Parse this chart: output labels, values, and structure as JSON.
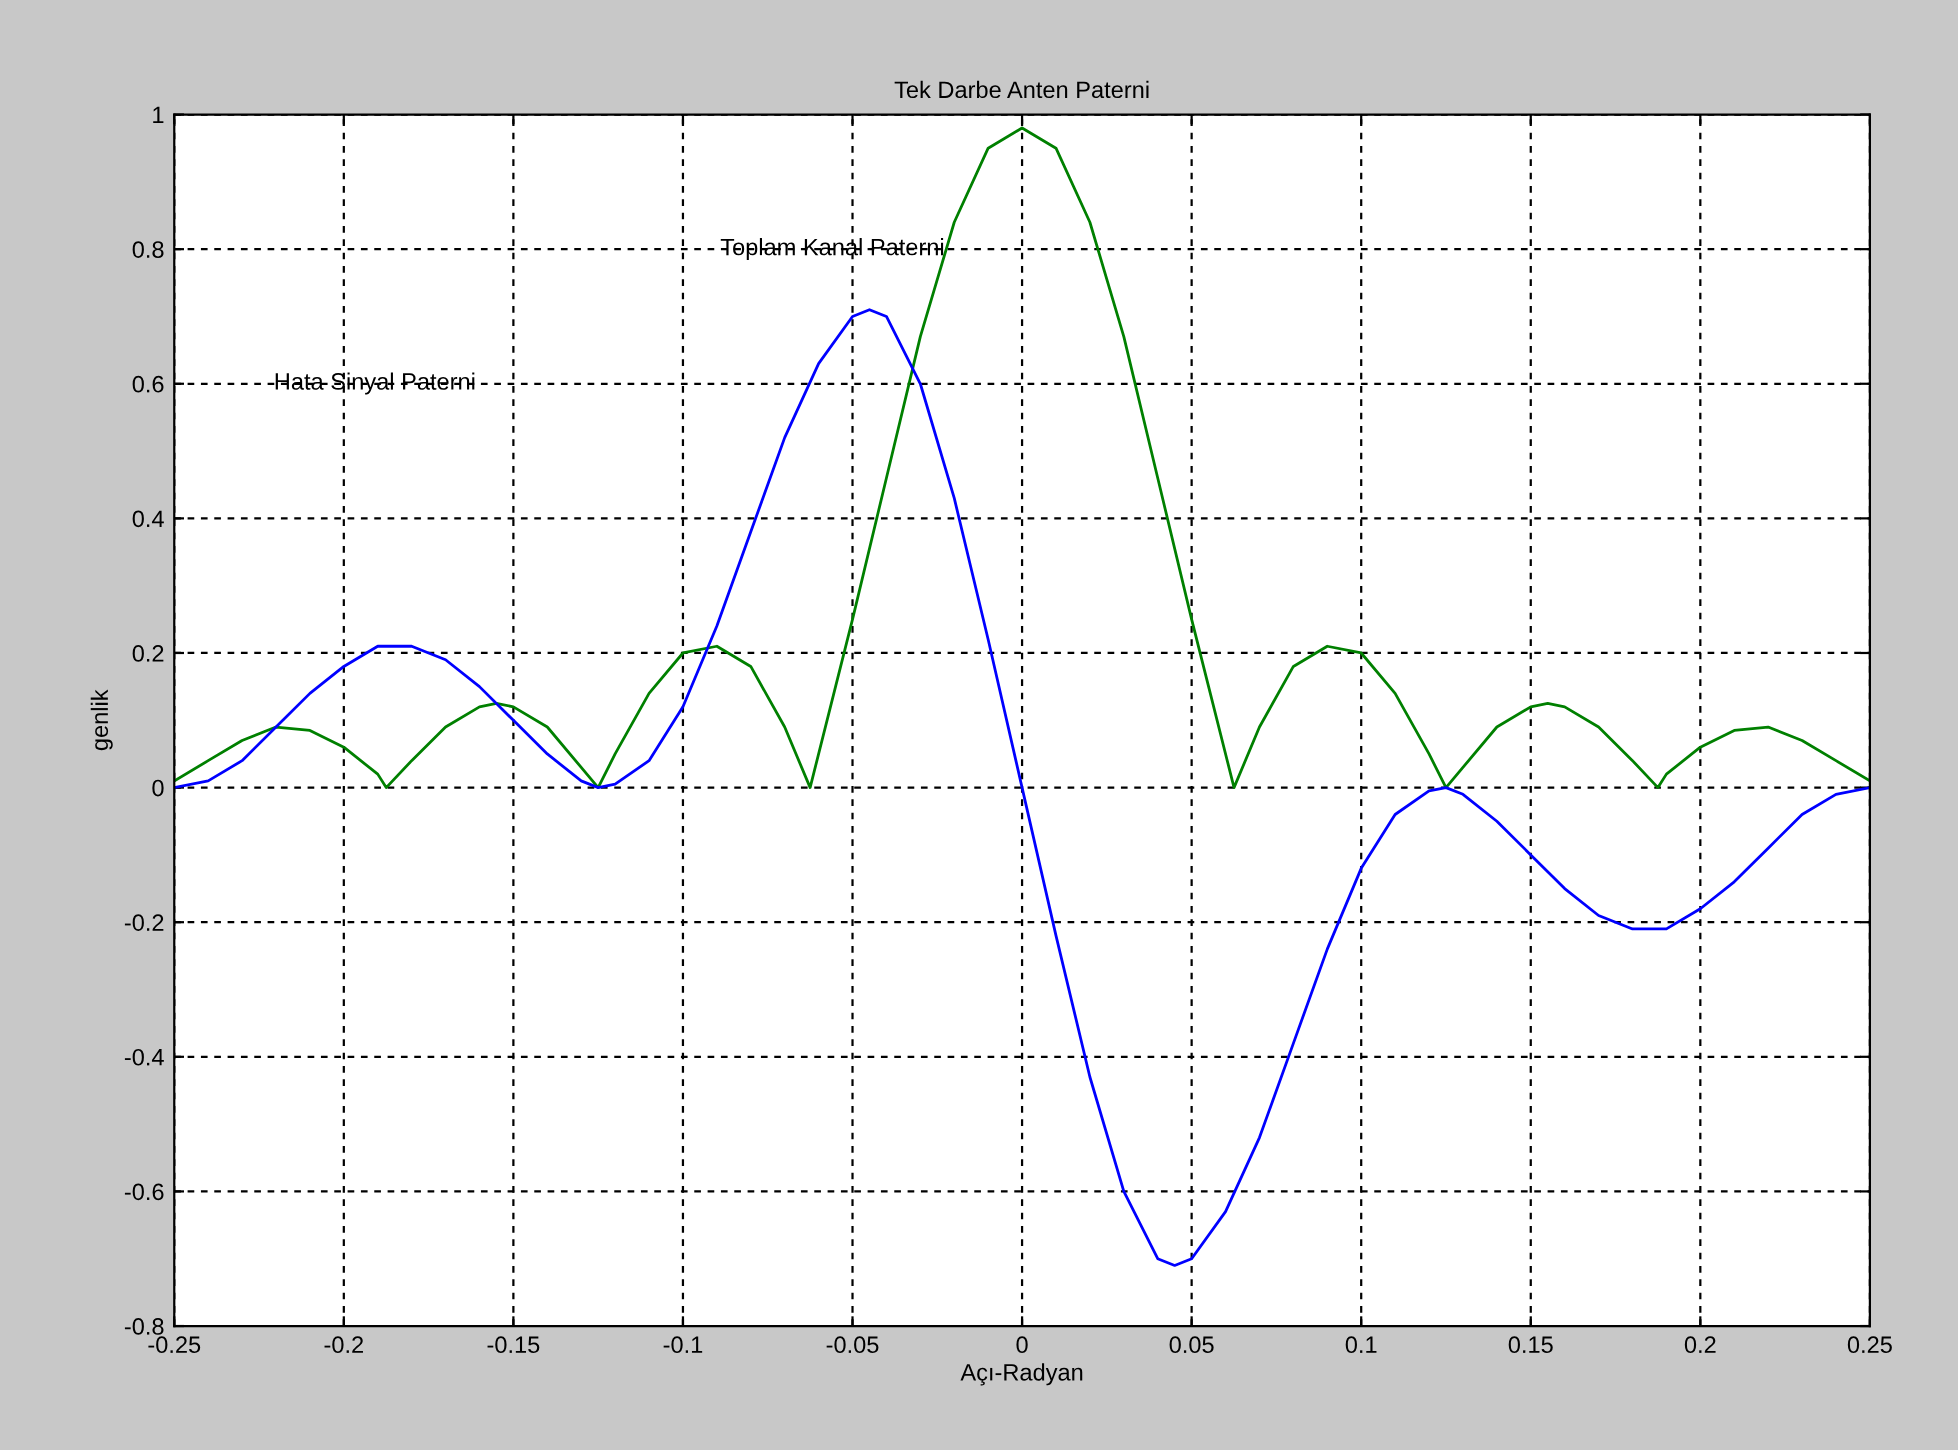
{
  "chart_data": {
    "type": "line",
    "title": "Tek Darbe Anten Paterni",
    "xlabel": "Açı-Radyan",
    "ylabel": "genlik",
    "xlim": [
      -0.25,
      0.25
    ],
    "ylim": [
      -0.8,
      1
    ],
    "xticks": [
      -0.25,
      -0.2,
      -0.15,
      -0.1,
      -0.05,
      0,
      0.05,
      0.1,
      0.15,
      0.2,
      0.25
    ],
    "yticks": [
      -0.8,
      -0.6,
      -0.4,
      -0.2,
      0,
      0.2,
      0.4,
      0.6,
      0.8,
      1
    ],
    "grid": true,
    "legend": false,
    "marker": "none",
    "line_style": "solid",
    "annotations": [
      "Toplam Kanal Paterni",
      "Hata Sinyal Paterni"
    ],
    "series": [
      {
        "color": "#008000",
        "x": [
          -0.25,
          -0.24,
          -0.23,
          -0.22,
          -0.21,
          -0.2,
          -0.19,
          -0.1875,
          -0.18,
          -0.17,
          -0.16,
          -0.155,
          -0.15,
          -0.14,
          -0.13,
          -0.125,
          -0.12,
          -0.11,
          -0.1,
          -0.09,
          -0.08,
          -0.07,
          -0.0625,
          -0.055,
          -0.05,
          -0.04,
          -0.03,
          -0.02,
          -0.01,
          0,
          0.01,
          0.02,
          0.03,
          0.04,
          0.05,
          0.055,
          0.0625,
          0.07,
          0.08,
          0.09,
          0.1,
          0.11,
          0.12,
          0.125,
          0.13,
          0.14,
          0.15,
          0.155,
          0.16,
          0.17,
          0.18,
          0.1875,
          0.19,
          0.2,
          0.21,
          0.22,
          0.23,
          0.24,
          0.25
        ],
        "values": [
          0.01,
          0.04,
          0.07,
          0.09,
          0.085,
          0.06,
          0.02,
          0,
          0.04,
          0.09,
          0.12,
          0.125,
          0.12,
          0.09,
          0.03,
          0,
          0.05,
          0.14,
          0.2,
          0.21,
          0.18,
          0.09,
          0,
          0.15,
          0.25,
          0.46,
          0.67,
          0.84,
          0.95,
          0.98,
          0.95,
          0.84,
          0.67,
          0.46,
          0.25,
          0.15,
          0,
          0.09,
          0.18,
          0.21,
          0.2,
          0.14,
          0.05,
          0,
          0.03,
          0.09,
          0.12,
          0.125,
          0.12,
          0.09,
          0.04,
          0,
          0.02,
          0.06,
          0.085,
          0.09,
          0.07,
          0.04,
          0.01
        ]
      },
      {
        "color": "#0000ff",
        "x": [
          -0.25,
          -0.24,
          -0.23,
          -0.22,
          -0.21,
          -0.2,
          -0.19,
          -0.18,
          -0.17,
          -0.16,
          -0.15,
          -0.14,
          -0.13,
          -0.125,
          -0.12,
          -0.11,
          -0.1,
          -0.09,
          -0.08,
          -0.07,
          -0.06,
          -0.05,
          -0.045,
          -0.04,
          -0.03,
          -0.02,
          -0.01,
          0,
          0.01,
          0.02,
          0.03,
          0.04,
          0.045,
          0.05,
          0.06,
          0.07,
          0.08,
          0.09,
          0.1,
          0.11,
          0.12,
          0.125,
          0.13,
          0.14,
          0.15,
          0.16,
          0.17,
          0.18,
          0.19,
          0.2,
          0.21,
          0.22,
          0.23,
          0.24,
          0.25
        ],
        "values": [
          0,
          0.01,
          0.04,
          0.09,
          0.14,
          0.18,
          0.21,
          0.21,
          0.19,
          0.15,
          0.1,
          0.05,
          0.01,
          0,
          0.005,
          0.04,
          0.12,
          0.24,
          0.38,
          0.52,
          0.63,
          0.7,
          0.71,
          0.7,
          0.6,
          0.43,
          0.22,
          0,
          -0.22,
          -0.43,
          -0.6,
          -0.7,
          -0.71,
          -0.7,
          -0.63,
          -0.52,
          -0.38,
          -0.24,
          -0.12,
          -0.04,
          -0.005,
          0,
          -0.01,
          -0.05,
          -0.1,
          -0.15,
          -0.19,
          -0.21,
          -0.21,
          -0.18,
          -0.14,
          -0.09,
          -0.04,
          -0.01,
          0
        ]
      }
    ]
  }
}
